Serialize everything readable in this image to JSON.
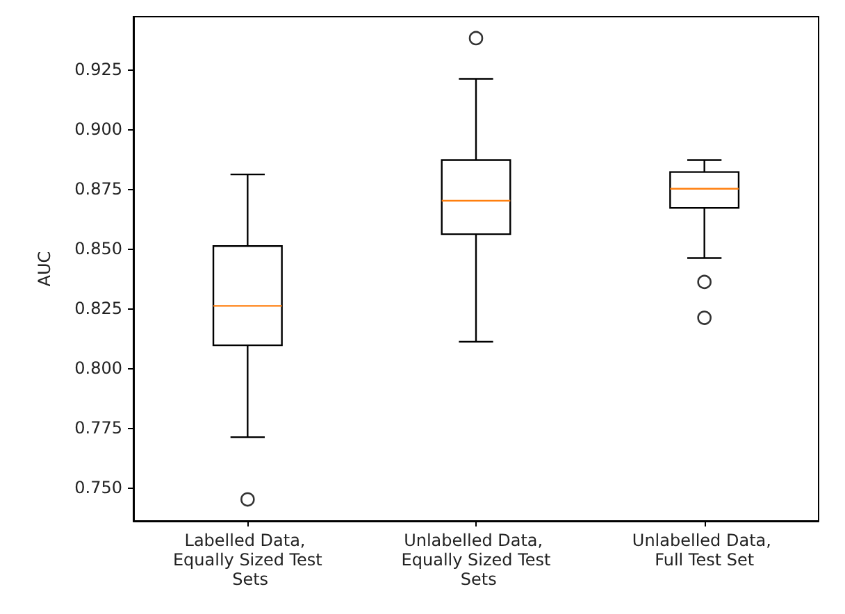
{
  "chart_data": {
    "type": "box",
    "ylabel": "AUC",
    "categories": [
      "Labelled Data, Equally Sized Test Sets",
      "Unlabelled Data, Equally Sized Test Sets",
      "Unlabelled Data, Full Test Set"
    ],
    "boxes": [
      {
        "low": 0.771,
        "q1": 0.8095,
        "median": 0.826,
        "q3": 0.851,
        "high": 0.881,
        "outliers": [
          0.745
        ]
      },
      {
        "low": 0.811,
        "q1": 0.856,
        "median": 0.87,
        "q3": 0.887,
        "high": 0.921,
        "outliers": [
          0.938
        ]
      },
      {
        "low": 0.846,
        "q1": 0.867,
        "median": 0.875,
        "q3": 0.882,
        "high": 0.887,
        "outliers": [
          0.836,
          0.821
        ]
      }
    ],
    "color": "#000000",
    "ylim": [
      0.736,
      0.947
    ],
    "yticks": [
      {
        "value": 0.75,
        "label": "0.750"
      },
      {
        "value": 0.775,
        "label": "0.775"
      },
      {
        "value": 0.8,
        "label": "0.800"
      },
      {
        "value": 0.825,
        "label": "0.825"
      },
      {
        "value": 0.85,
        "label": "0.850"
      },
      {
        "value": 0.875,
        "label": "0.875"
      },
      {
        "value": 0.9,
        "label": "0.900"
      },
      {
        "value": 0.925,
        "label": "0.925"
      }
    ],
    "grid": false,
    "marker": "circle"
  }
}
